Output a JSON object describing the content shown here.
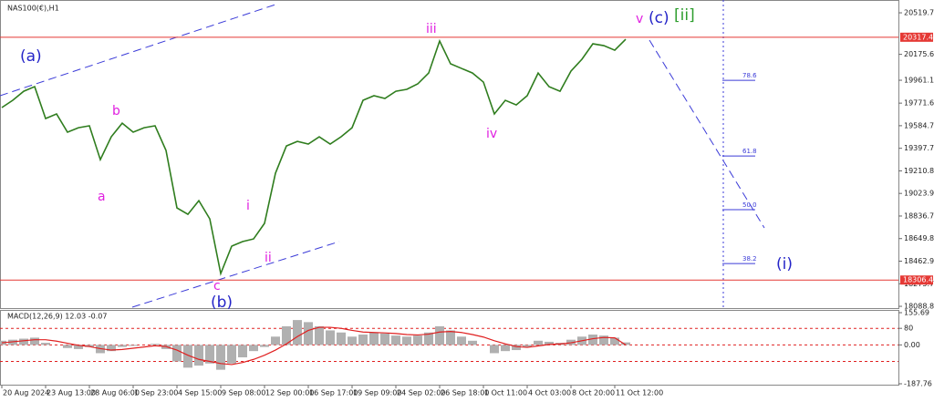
{
  "chart_data": [
    {
      "type": "line",
      "title": "NAS100(€),H1",
      "color": "#2f7d1e",
      "categories": [
        "20 Aug 2024",
        null,
        null,
        null,
        "23 Aug 13:00",
        null,
        null,
        null,
        "28 Aug 06:00",
        null,
        null,
        null,
        "1 Sep 23:00",
        null,
        null,
        null,
        "4 Sep 15:00",
        null,
        null,
        null,
        "9 Sep 08:00",
        null,
        null,
        null,
        "12 Sep 00:00",
        null,
        null,
        null,
        "16 Sep 17:00",
        null,
        null,
        null,
        "19 Sep 09:00",
        null,
        null,
        null,
        "24 Sep 02:00",
        null,
        null,
        null,
        "26 Sep 18:00",
        null,
        null,
        null,
        "1 Oct 11:00",
        null,
        null,
        null,
        "4 Oct 03:00",
        null,
        null,
        null,
        "8 Oct 20:00",
        null,
        null,
        null,
        "11 Oct 12:00",
        null
      ],
      "values": [
        19735,
        19795,
        19870,
        19908,
        19644,
        19682,
        19531,
        19568,
        19584,
        19304,
        19493,
        19606,
        19531,
        19568,
        19584,
        19380,
        18904,
        18851,
        18964,
        18813,
        18360,
        18587,
        18625,
        18647,
        18776,
        19191,
        19417,
        19455,
        19433,
        19493,
        19433,
        19493,
        19568,
        19795,
        19833,
        19810,
        19870,
        19886,
        19931,
        20021,
        20286,
        20097,
        20059,
        20021,
        19946,
        19682,
        19795,
        19757,
        19833,
        20021,
        19908,
        19870,
        20037,
        20135,
        20263,
        20248,
        20210,
        20301
      ],
      "ylim": [
        18074,
        20588
      ],
      "yticks": [
        20519.7,
        20175.6,
        19961.1,
        19771.6,
        19584.7,
        19397.7,
        19210.8,
        19023.9,
        18836.7,
        18649.8,
        18462.9,
        18275.7,
        18088.8
      ],
      "levels": [
        {
          "value": 20317.4,
          "color": "#e53935"
        },
        {
          "value": 18306.4,
          "color": "#e53935"
        }
      ],
      "fib_levels": [
        {
          "value": 19960,
          "label": "78.6"
        },
        {
          "value": 19334,
          "label": "61.8"
        },
        {
          "value": 18889,
          "label": "50.0"
        },
        {
          "value": 18443,
          "label": "38.2"
        }
      ],
      "annotations": [
        {
          "text": "(a)",
          "color": "#2424c8"
        },
        {
          "text": "a",
          "color": "#e020e0"
        },
        {
          "text": "b",
          "color": "#e020e0"
        },
        {
          "text": "c",
          "color": "#e020e0"
        },
        {
          "text": "(b)",
          "color": "#2424c8"
        },
        {
          "text": "i",
          "color": "#e020e0"
        },
        {
          "text": "ii",
          "color": "#e020e0"
        },
        {
          "text": "iii",
          "color": "#e020e0"
        },
        {
          "text": "iv",
          "color": "#e020e0"
        },
        {
          "text": "v",
          "color": "#e020e0"
        },
        {
          "text": "(c)",
          "color": "#2424c8"
        },
        {
          "text": "[ii]",
          "color": "#2e9e2e"
        },
        {
          "text": "(i)",
          "color": "#2424c8"
        }
      ]
    },
    {
      "type": "macd",
      "title": "MACD(12,26,9) 12.03 -0.07",
      "series": [
        {
          "style": "histogram",
          "color": "#b0b0b0",
          "values": [
            20,
            25,
            30,
            35,
            10,
            0,
            -15,
            -20,
            -10,
            -40,
            -30,
            -10,
            -5,
            0,
            5,
            -20,
            -80,
            -110,
            -100,
            -90,
            -120,
            -90,
            -60,
            -30,
            -10,
            40,
            90,
            120,
            110,
            90,
            70,
            60,
            40,
            50,
            60,
            55,
            45,
            40,
            45,
            60,
            90,
            70,
            40,
            20,
            0,
            -40,
            -30,
            -25,
            -10,
            20,
            15,
            10,
            25,
            40,
            50,
            45,
            35,
            12.03
          ]
        },
        {
          "style": "line",
          "color": "#e02020",
          "values": [
            10,
            15,
            20,
            25,
            25,
            18,
            8,
            -2,
            -8,
            -18,
            -25,
            -22,
            -16,
            -10,
            -4,
            -8,
            -25,
            -50,
            -70,
            -80,
            -90,
            -95,
            -85,
            -70,
            -50,
            -25,
            5,
            40,
            70,
            85,
            85,
            80,
            70,
            62,
            60,
            58,
            55,
            50,
            48,
            52,
            62,
            65,
            60,
            50,
            38,
            20,
            5,
            -8,
            -12,
            -5,
            2,
            5,
            10,
            20,
            30,
            36,
            34,
            -0.07
          ]
        }
      ],
      "ylim": [
        -187.76,
        155.69
      ],
      "yticks": [
        155.69,
        80,
        {
          "value": 0,
          "label": "0.00"
        },
        -187.76
      ],
      "levels": [
        80,
        0,
        -80
      ]
    }
  ]
}
